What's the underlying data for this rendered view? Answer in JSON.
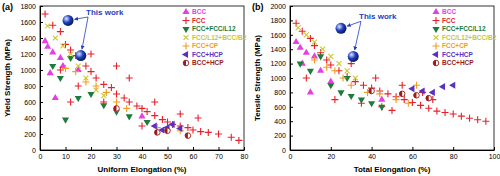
{
  "chart_data": [
    {
      "type": "scatter",
      "title": "(a)",
      "x_label": "Uniform Elongation (%)",
      "y_label": "Yield Strength (MPa)",
      "xlim": [
        0,
        80
      ],
      "ylim": [
        0,
        1800
      ],
      "xticks": [
        0,
        10,
        20,
        30,
        40,
        50,
        60,
        70,
        80
      ],
      "yticks": [
        0,
        200,
        400,
        600,
        800,
        1000,
        1200,
        1400,
        1600,
        1800
      ],
      "legend": "upper right",
      "series": [
        {
          "name": "BCC",
          "color": "#e43fe4",
          "marker": "triangle-up",
          "x": [
            2,
            3,
            5,
            8,
            4,
            6,
            9,
            15,
            40
          ],
          "values": [
            1360,
            1290,
            1220,
            1150,
            960,
            650,
            1050,
            1000,
            420
          ]
        },
        {
          "name": "FCC",
          "color": "#e8202a",
          "marker": "plus",
          "x": [
            2,
            5,
            8,
            10,
            12,
            14,
            18,
            20,
            22,
            25,
            28,
            30,
            33,
            35,
            38,
            40,
            42,
            45,
            48,
            50,
            52,
            55,
            58,
            60,
            63,
            66,
            70,
            75,
            78,
            30,
            20,
            15,
            25,
            45,
            55,
            35,
            8,
            12,
            40,
            62
          ],
          "values": [
            1700,
            1560,
            1480,
            1320,
            1250,
            1180,
            1050,
            980,
            900,
            820,
            780,
            700,
            650,
            600,
            550,
            520,
            480,
            430,
            380,
            350,
            320,
            300,
            280,
            250,
            230,
            220,
            200,
            160,
            120,
            1050,
            1200,
            800,
            600,
            600,
            450,
            900,
            1000,
            600,
            300,
            400
          ]
        },
        {
          "name": "FCC+FCC/L12",
          "color": "#1e7b3c",
          "marker": "triangle-down",
          "x": [
            5,
            8,
            12,
            15,
            20,
            25,
            30,
            35,
            10,
            42
          ],
          "values": [
            1050,
            900,
            1150,
            650,
            700,
            560,
            480,
            420,
            380,
            350
          ]
        },
        {
          "name": "FCC/L12+BCC/B2",
          "color": "#c9c92a",
          "marker": "cross",
          "x": [
            3,
            6,
            9,
            12,
            15,
            18,
            22,
            25
          ],
          "values": [
            1550,
            1400,
            1300,
            1200,
            1050,
            900,
            750,
            680
          ]
        },
        {
          "name": "FCC+CP",
          "color": "#f59a23",
          "marker": "plus",
          "x": [
            10,
            14,
            18,
            22,
            26,
            30,
            34,
            46,
            50,
            55
          ],
          "values": [
            1020,
            980,
            850,
            800,
            720,
            600,
            520,
            280,
            250,
            240
          ]
        },
        {
          "name": "FCC+HCP",
          "color": "#5a2fc4",
          "marker": "triangle-left",
          "x": [
            45,
            50,
            52,
            48,
            55
          ],
          "values": [
            300,
            280,
            320,
            250,
            270
          ]
        },
        {
          "name": "BCC+HCP",
          "color": "#9b1c1c",
          "marker": "half-circle",
          "x": [
            46,
            50,
            58,
            30
          ],
          "values": [
            220,
            240,
            180,
            520
          ]
        }
      ],
      "highlight": {
        "text": "This work",
        "color": "#1f3fbf",
        "marker": "sphere",
        "x": [
          11,
          16
        ],
        "values": [
          1620,
          1180
        ]
      }
    },
    {
      "type": "scatter",
      "title": "(b)",
      "x_label": "Total Elongation (%)",
      "y_label": "Tensile Strength (MPa)",
      "xlim": [
        0,
        100
      ],
      "ylim": [
        0,
        2000
      ],
      "xticks": [
        0,
        20,
        40,
        60,
        80,
        100
      ],
      "yticks": [
        0,
        200,
        400,
        600,
        800,
        1000,
        1200,
        1400,
        1600,
        1800,
        2000
      ],
      "legend": "upper right",
      "series": [
        {
          "name": "BCC",
          "color": "#e43fe4",
          "marker": "triangle-up",
          "x": [
            3,
            5,
            8,
            12,
            6,
            15,
            10,
            45,
            20
          ],
          "values": [
            1500,
            1420,
            1350,
            1300,
            1200,
            1100,
            800,
            700,
            950
          ]
        },
        {
          "name": "FCC",
          "color": "#e8202a",
          "marker": "plus",
          "x": [
            3,
            6,
            10,
            12,
            15,
            18,
            20,
            24,
            28,
            32,
            36,
            40,
            44,
            48,
            52,
            56,
            60,
            64,
            68,
            72,
            76,
            80,
            84,
            88,
            92,
            96,
            30,
            42,
            55,
            65,
            22,
            35,
            50,
            8,
            70,
            45
          ],
          "values": [
            1760,
            1650,
            1550,
            1450,
            1350,
            1250,
            1180,
            1100,
            1020,
            950,
            900,
            860,
            820,
            780,
            740,
            700,
            660,
            620,
            580,
            540,
            520,
            500,
            470,
            440,
            420,
            400,
            1200,
            1000,
            900,
            800,
            700,
            650,
            550,
            1000,
            700,
            600
          ]
        },
        {
          "name": "FCC+FCC/L12",
          "color": "#1e7b3c",
          "marker": "triangle-down",
          "x": [
            5,
            10,
            15,
            20,
            25,
            30,
            35,
            40,
            28,
            45
          ],
          "values": [
            1200,
            1100,
            1300,
            900,
            800,
            750,
            700,
            650,
            1000,
            600
          ]
        },
        {
          "name": "FCC/L12+BCC/B2",
          "color": "#c9c92a",
          "marker": "cross",
          "x": [
            4,
            8,
            12,
            16,
            20,
            24,
            28,
            32
          ],
          "values": [
            1700,
            1600,
            1500,
            1400,
            1300,
            1200,
            1100,
            1000
          ]
        },
        {
          "name": "FCC+CP",
          "color": "#f59a23",
          "marker": "plus",
          "x": [
            12,
            18,
            22,
            26,
            30,
            38,
            44,
            52,
            58,
            62
          ],
          "values": [
            1250,
            1150,
            1100,
            1000,
            900,
            800,
            780,
            700,
            650,
            900
          ]
        },
        {
          "name": "FCC+HCP",
          "color": "#5a2fc4",
          "marker": "triangle-left",
          "x": [
            60,
            65,
            70,
            75,
            80
          ],
          "values": [
            850,
            820,
            800,
            880,
            900
          ]
        },
        {
          "name": "BCC+HCP",
          "color": "#9b1c1c",
          "marker": "half-circle",
          "x": [
            55,
            62,
            68,
            40
          ],
          "values": [
            780,
            760,
            720,
            820
          ]
        }
      ],
      "highlight": {
        "text": "This work",
        "color": "#1f3fbf",
        "marker": "sphere",
        "x": [
          25,
          31
        ],
        "values": [
          1690,
          1300
        ]
      }
    }
  ]
}
